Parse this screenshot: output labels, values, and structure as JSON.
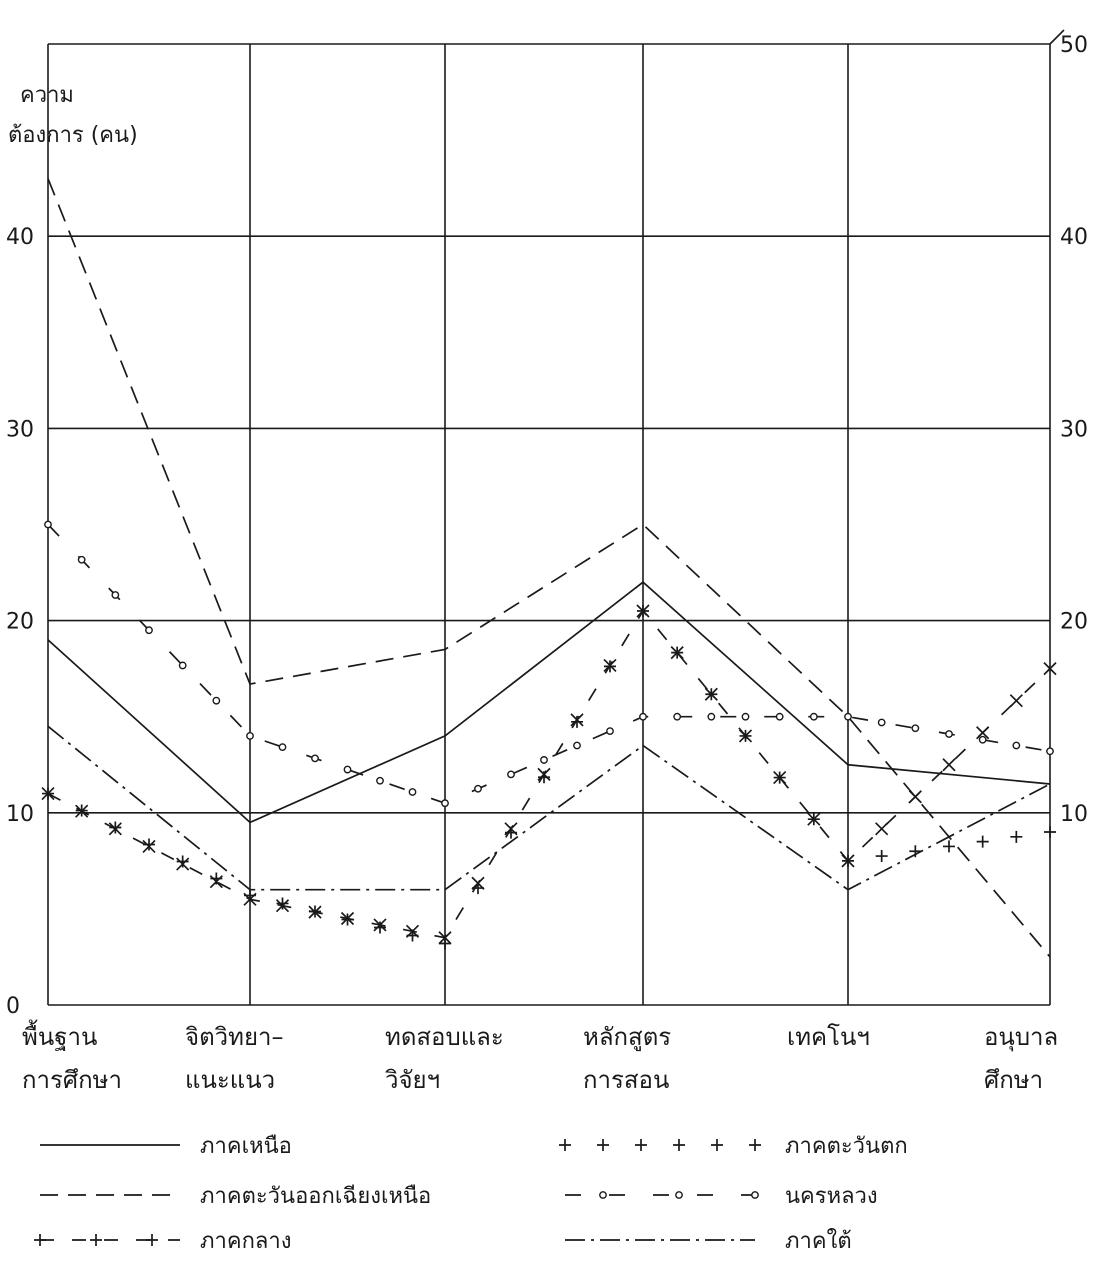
{
  "chart_data": {
    "type": "line",
    "ylabel_line1": "ความ",
    "ylabel_line2": "ต้องการ (คน)",
    "left_ticks": [
      "0",
      "10",
      "20",
      "30",
      "40"
    ],
    "right_ticks": [
      "10",
      "20",
      "30",
      "40",
      "50"
    ],
    "ylim": [
      0,
      50
    ],
    "grid": true,
    "legend_position": "bottom",
    "categories": [
      [
        "พื้นฐาน",
        "การศึกษา"
      ],
      [
        "จิตวิทยา–",
        "แนะแนว"
      ],
      [
        "ทดสอบและ",
        "วิจัยฯ"
      ],
      [
        "หลักสูตร",
        "การสอน"
      ],
      [
        "เทคโนฯ",
        ""
      ],
      [
        "อนุบาล",
        "ศึกษา"
      ]
    ],
    "series": [
      {
        "name": "ภาคเหนือ",
        "style": "solid",
        "values": [
          19,
          9.5,
          14,
          22,
          12.5,
          11.5
        ]
      },
      {
        "name": "ภาคตะวันออกเฉียงเหนือ",
        "style": "dashed",
        "values": [
          43,
          16.7,
          18.5,
          25,
          15,
          2.5
        ]
      },
      {
        "name": "ภาคกลาง",
        "style": "dash-plus",
        "values": [
          11,
          5.5,
          3.5,
          20.5,
          7.5,
          17.5
        ]
      },
      {
        "name": "ภาคตะวันตก",
        "style": "plus",
        "values": [
          11,
          5.7,
          3.2,
          20.5,
          7.5,
          9
        ]
      },
      {
        "name": "นครหลวง",
        "style": "dash-circle",
        "values": [
          25,
          14,
          10.5,
          15,
          15,
          13.2
        ]
      },
      {
        "name": "ภาคใต้",
        "style": "dash-dot",
        "values": [
          14.5,
          6,
          6,
          13.5,
          6,
          11.5
        ]
      }
    ],
    "colors": {
      "ink": "#1a1a1a",
      "grid": "#1a1a1a"
    }
  }
}
